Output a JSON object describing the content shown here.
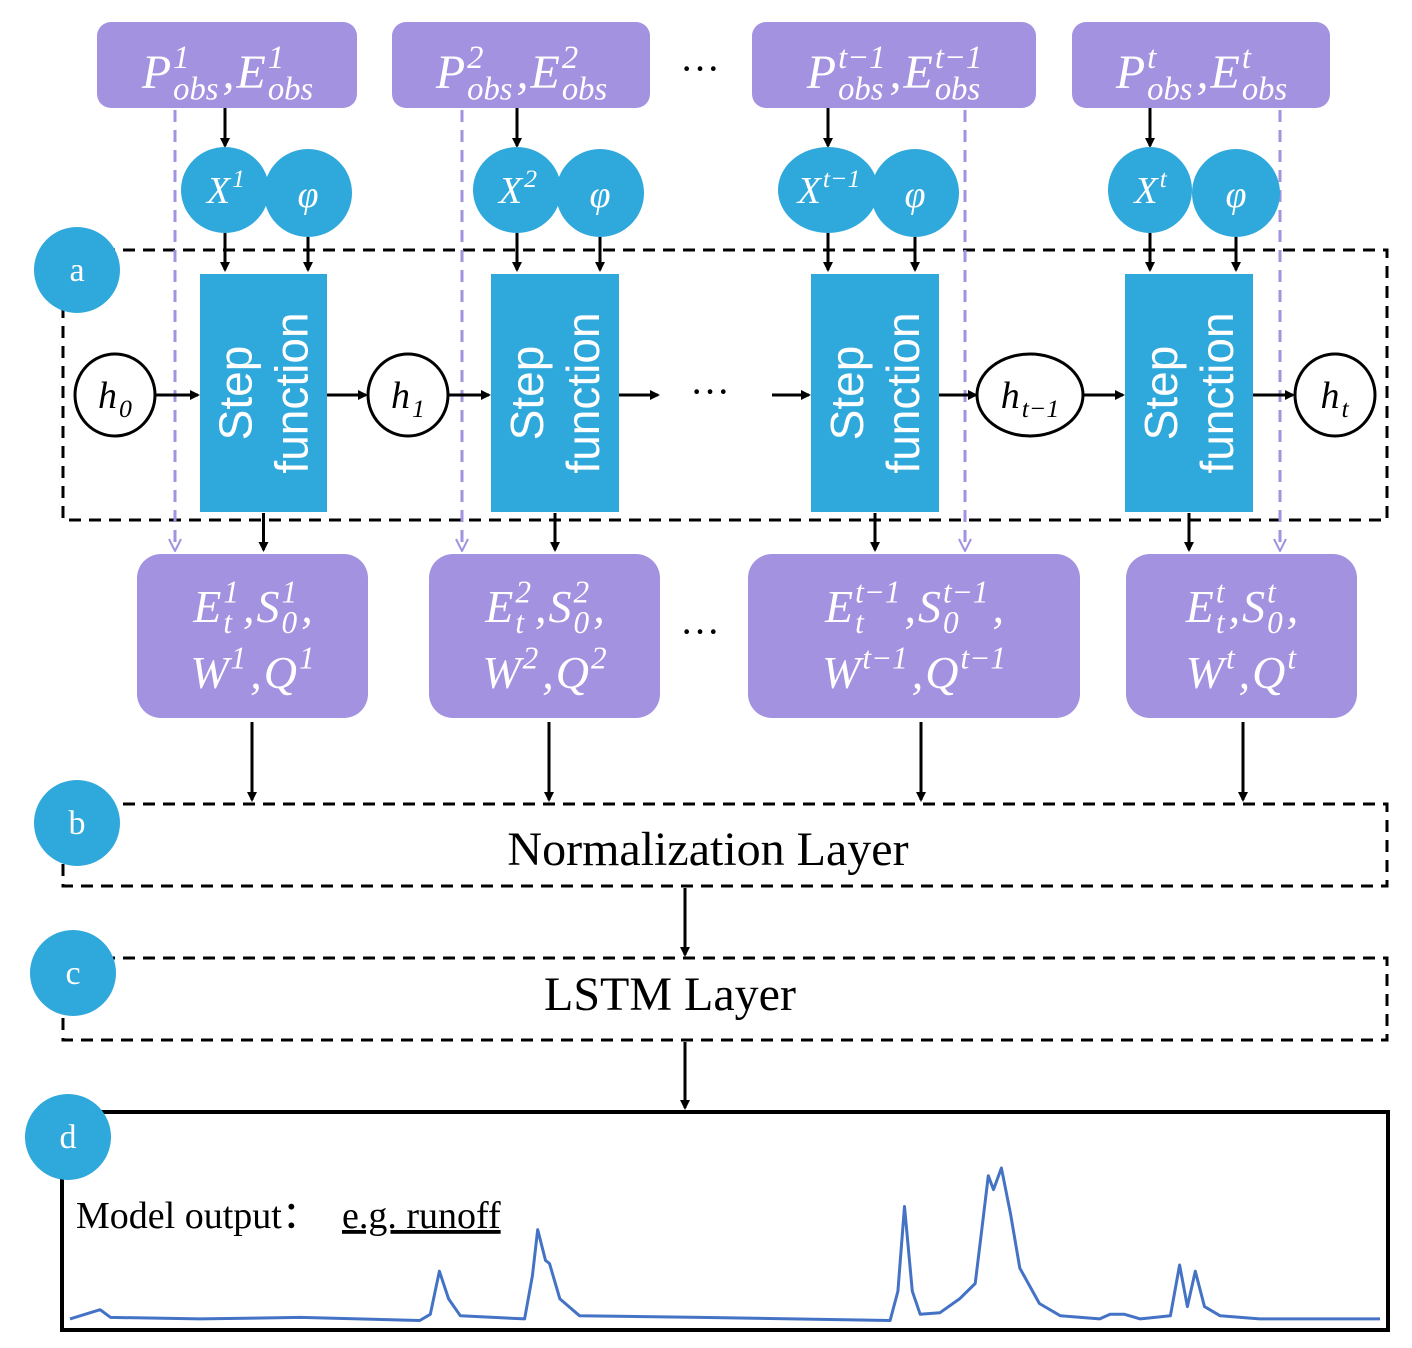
{
  "colors": {
    "purple": "#a392e0",
    "blue": "#2fa8dc",
    "curve": "#4472c4",
    "dash_purple": "#a392e0"
  },
  "symbols": {
    "P": "P",
    "E": "E",
    "S": "S",
    "W": "W",
    "Q": "Q",
    "X": "X",
    "h": "h",
    "obs": "obs",
    "t_sub": "t",
    "zero": "0",
    "comma": ",",
    "phi": "φ"
  },
  "ellipsis": "···",
  "columns": [
    {
      "idx": "1",
      "step": [
        "Step",
        "function"
      ]
    },
    {
      "idx": "2",
      "step": [
        "Step",
        "function"
      ]
    },
    {
      "idx": "t−1",
      "step": [
        "Step",
        "function"
      ]
    },
    {
      "idx": "t",
      "step": [
        "Step",
        "function"
      ]
    }
  ],
  "hidden_states": [
    {
      "base": "h",
      "sub": "0"
    },
    {
      "base": "h",
      "sub": "1"
    },
    {
      "base": "h",
      "sub": "t−1"
    },
    {
      "base": "h",
      "sub": "t"
    }
  ],
  "badges": {
    "a": "a",
    "b": "b",
    "c": "c",
    "d": "d"
  },
  "layers": {
    "normalization": "Normalization Layer",
    "lstm": "LSTM Layer"
  },
  "output": {
    "label": "Model output：",
    "example": "e.g. runoff"
  },
  "chart_data": {
    "type": "line",
    "title": "",
    "xlabel": "",
    "ylabel": "",
    "series": [
      {
        "x": [
          0,
          23,
          31,
          99,
          176,
          267,
          275,
          282,
          289,
          298,
          347,
          353,
          357,
          363,
          366,
          374,
          389,
          481,
          626,
          632,
          637,
          643,
          649,
          664,
          679,
          691,
          696,
          701,
          705,
          711,
          718,
          725,
          740,
          756,
          786,
          794,
          805,
          817,
          840,
          847,
          853,
          859,
          866,
          878,
          908,
          1000
        ],
        "y": [
          0.02,
          0.08,
          0.03,
          0.02,
          0.03,
          0.01,
          0.05,
          0.33,
          0.15,
          0.04,
          0.02,
          0.3,
          0.6,
          0.4,
          0.38,
          0.15,
          0.04,
          0.03,
          0.01,
          0.2,
          0.75,
          0.2,
          0.05,
          0.06,
          0.15,
          0.25,
          0.6,
          0.95,
          0.86,
          1.0,
          0.7,
          0.35,
          0.12,
          0.04,
          0.02,
          0.05,
          0.05,
          0.02,
          0.04,
          0.37,
          0.1,
          0.33,
          0.1,
          0.04,
          0.02,
          0.02
        ]
      }
    ]
  }
}
